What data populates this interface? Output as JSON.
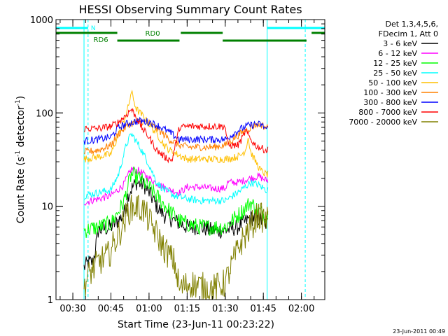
{
  "chart_data": {
    "type": "line",
    "title": "HESSI Observing Summary Count Rates",
    "xlabel": "Start Time (23-Jun-11 00:23:22)",
    "ylabel_main": "Count Rate (s",
    "ylabel_sup1": "-1",
    "ylabel_mid": " detector",
    "ylabel_sup2": "-1",
    "ylabel_end": ")",
    "yscale": "log",
    "ylim": [
      1,
      1000
    ],
    "xlim_min": [
      23.37,
      129.2
    ],
    "x_unit": "minutes after 00:00 UT",
    "x_ticks": [
      {
        "label": "00:30",
        "value": 30
      },
      {
        "label": "00:45",
        "value": 45
      },
      {
        "label": "01:00",
        "value": 60
      },
      {
        "label": "01:15",
        "value": 75
      },
      {
        "label": "01:30",
        "value": 90
      },
      {
        "label": "01:45",
        "value": 105
      },
      {
        "label": "02:00",
        "value": 120
      }
    ],
    "y_ticks": [
      {
        "label": "1",
        "value": 1
      },
      {
        "label": "10",
        "value": 10
      },
      {
        "label": "100",
        "value": 100
      },
      {
        "label": "1000",
        "value": 1000
      }
    ],
    "legend_header": [
      "Det 1,3,4,5,6,",
      "FDecim 1, Att 0"
    ],
    "legend_position": "right",
    "series": [
      {
        "name": "3 - 6 keV",
        "color": "#000000",
        "points": [
          [
            34.4,
            2.2
          ],
          [
            36,
            2.5
          ],
          [
            38,
            2.5
          ],
          [
            40,
            5.5
          ],
          [
            45,
            6
          ],
          [
            50,
            8
          ],
          [
            52,
            14
          ],
          [
            55,
            18
          ],
          [
            58,
            17
          ],
          [
            60,
            14
          ],
          [
            63,
            10
          ],
          [
            66,
            8
          ],
          [
            70,
            7
          ],
          [
            75,
            6
          ],
          [
            80,
            6
          ],
          [
            85,
            5.5
          ],
          [
            90,
            5.5
          ],
          [
            95,
            6
          ],
          [
            100,
            7.5
          ],
          [
            103,
            7.5
          ],
          [
            106,
            6.5
          ]
        ]
      },
      {
        "name": "6 - 12 keV",
        "color": "#ff00ff",
        "points": [
          [
            34.4,
            11
          ],
          [
            40,
            12
          ],
          [
            45,
            13
          ],
          [
            50,
            17
          ],
          [
            53,
            25
          ],
          [
            56,
            24
          ],
          [
            60,
            20
          ],
          [
            64,
            17
          ],
          [
            68,
            15
          ],
          [
            72,
            14
          ],
          [
            75,
            16
          ],
          [
            80,
            16
          ],
          [
            85,
            15.5
          ],
          [
            90,
            15.5
          ],
          [
            91,
            18
          ],
          [
            95,
            18
          ],
          [
            100,
            20
          ],
          [
            103,
            21
          ],
          [
            106,
            19
          ]
        ]
      },
      {
        "name": "12 - 25 keV",
        "color": "#00ff00",
        "points": [
          [
            34.4,
            5.5
          ],
          [
            40,
            6
          ],
          [
            45,
            6.5
          ],
          [
            50,
            11
          ],
          [
            53,
            22
          ],
          [
            56,
            20
          ],
          [
            60,
            16
          ],
          [
            64,
            12
          ],
          [
            68,
            9
          ],
          [
            72,
            7
          ],
          [
            75,
            6.5
          ],
          [
            80,
            6
          ],
          [
            85,
            6
          ],
          [
            90,
            6
          ],
          [
            95,
            8
          ],
          [
            100,
            11
          ],
          [
            103,
            9
          ],
          [
            106,
            8
          ]
        ]
      },
      {
        "name": "25 - 50 keV",
        "color": "#00ffff",
        "points": [
          [
            34.4,
            13
          ],
          [
            40,
            14
          ],
          [
            45,
            15
          ],
          [
            48,
            22
          ],
          [
            51,
            45
          ],
          [
            53,
            60
          ],
          [
            55,
            50
          ],
          [
            57,
            40
          ],
          [
            60,
            28
          ],
          [
            63,
            18
          ],
          [
            66,
            15
          ],
          [
            70,
            13
          ],
          [
            75,
            12
          ],
          [
            80,
            11.5
          ],
          [
            85,
            11.5
          ],
          [
            90,
            11.5
          ],
          [
            95,
            14
          ],
          [
            100,
            18
          ],
          [
            103,
            17
          ],
          [
            106,
            15
          ]
        ]
      },
      {
        "name": "50 - 100 keV",
        "color": "#ffbf00",
        "points": [
          [
            34.4,
            32
          ],
          [
            40,
            34
          ],
          [
            45,
            36
          ],
          [
            47,
            50
          ],
          [
            50,
            80
          ],
          [
            52,
            120
          ],
          [
            53,
            170
          ],
          [
            55,
            110
          ],
          [
            58,
            90
          ],
          [
            61,
            70
          ],
          [
            64,
            55
          ],
          [
            66,
            45
          ],
          [
            68,
            40
          ],
          [
            72,
            35
          ],
          [
            75,
            32
          ],
          [
            80,
            32
          ],
          [
            85,
            32
          ],
          [
            90,
            32
          ],
          [
            93,
            33
          ],
          [
            96,
            35
          ],
          [
            98,
            40
          ],
          [
            99,
            55
          ],
          [
            100,
            38
          ],
          [
            102,
            30
          ],
          [
            104,
            24
          ],
          [
            106,
            22
          ]
        ]
      },
      {
        "name": "100 - 300 keV",
        "color": "#ff8000",
        "points": [
          [
            34.4,
            38
          ],
          [
            40,
            40
          ],
          [
            45,
            45
          ],
          [
            48,
            60
          ],
          [
            52,
            75
          ],
          [
            56,
            82
          ],
          [
            60,
            78
          ],
          [
            64,
            65
          ],
          [
            68,
            52
          ],
          [
            72,
            45
          ],
          [
            76,
            43
          ],
          [
            80,
            43
          ],
          [
            85,
            43
          ],
          [
            90,
            45
          ],
          [
            94,
            55
          ],
          [
            98,
            65
          ],
          [
            102,
            75
          ],
          [
            104,
            75
          ],
          [
            106,
            70
          ]
        ]
      },
      {
        "name": "300 - 800 keV",
        "color": "#0000ff",
        "points": [
          [
            34.4,
            50
          ],
          [
            40,
            52
          ],
          [
            45,
            55
          ],
          [
            48,
            70
          ],
          [
            52,
            78
          ],
          [
            56,
            82
          ],
          [
            60,
            80
          ],
          [
            64,
            72
          ],
          [
            68,
            62
          ],
          [
            72,
            52
          ],
          [
            76,
            52
          ],
          [
            80,
            52
          ],
          [
            85,
            52
          ],
          [
            90,
            52
          ],
          [
            94,
            62
          ],
          [
            98,
            72
          ],
          [
            102,
            76
          ],
          [
            104,
            75
          ],
          [
            106,
            68
          ]
        ]
      },
      {
        "name": "800 - 7000 keV",
        "color": "#ff0000",
        "points": [
          [
            34.4,
            68
          ],
          [
            40,
            68
          ],
          [
            45,
            72
          ],
          [
            48,
            80
          ],
          [
            51,
            95
          ],
          [
            53,
            110
          ],
          [
            55,
            90
          ],
          [
            57,
            70
          ],
          [
            60,
            55
          ],
          [
            63,
            40
          ],
          [
            66,
            34
          ],
          [
            69,
            31
          ],
          [
            72,
            70
          ],
          [
            76,
            72
          ],
          [
            80,
            72
          ],
          [
            85,
            72
          ],
          [
            90,
            72
          ],
          [
            91,
            45
          ],
          [
            95,
            45
          ],
          [
            97,
            55
          ],
          [
            98,
            65
          ],
          [
            100,
            52
          ],
          [
            102,
            45
          ],
          [
            104,
            42
          ],
          [
            106,
            40
          ]
        ]
      },
      {
        "name": "7000 - 20000 keV",
        "color": "#808000",
        "points": [
          [
            34.4,
            1.4
          ],
          [
            36,
            1.8
          ],
          [
            40,
            2.5
          ],
          [
            44,
            3
          ],
          [
            48,
            5
          ],
          [
            52,
            9
          ],
          [
            55,
            10
          ],
          [
            58,
            9
          ],
          [
            60,
            7
          ],
          [
            63,
            5
          ],
          [
            66,
            3.5
          ],
          [
            70,
            2.5
          ],
          [
            72,
            1.3
          ],
          [
            76,
            1.5
          ],
          [
            80,
            1.4
          ],
          [
            85,
            1.3
          ],
          [
            90,
            1.5
          ],
          [
            93,
            2.5
          ],
          [
            96,
            4
          ],
          [
            100,
            6
          ],
          [
            103,
            8
          ],
          [
            106,
            7
          ]
        ]
      }
    ],
    "saa_marks": [
      {
        "name": "N",
        "color": "#00ffff",
        "row": "top",
        "segments": [
          [
            23.37,
            36
          ]
        ],
        "edge": 36
      },
      {
        "name": "",
        "color": "#00ffff",
        "row": "top",
        "segments": [
          [
            106.5,
            129.2
          ]
        ],
        "edge": 106.5
      }
    ],
    "eclipse_lines": [
      36,
      121.5
    ],
    "rd_marks": [
      {
        "name": "RD0",
        "color": "#008000",
        "row": 1,
        "segments": [
          [
            23.37,
            47.5
          ],
          [
            72.5,
            89
          ],
          [
            124,
            129.2
          ]
        ]
      },
      {
        "name": "RD6",
        "color": "#008000",
        "row": 2,
        "segments": [
          [
            47.5,
            72
          ],
          [
            89,
            122
          ]
        ]
      }
    ],
    "data_start": 34.4,
    "data_end": 106.8,
    "gap_lines": [
      34.4,
      106.5
    ],
    "timestamp": "23-Jun-2011 00:49"
  }
}
